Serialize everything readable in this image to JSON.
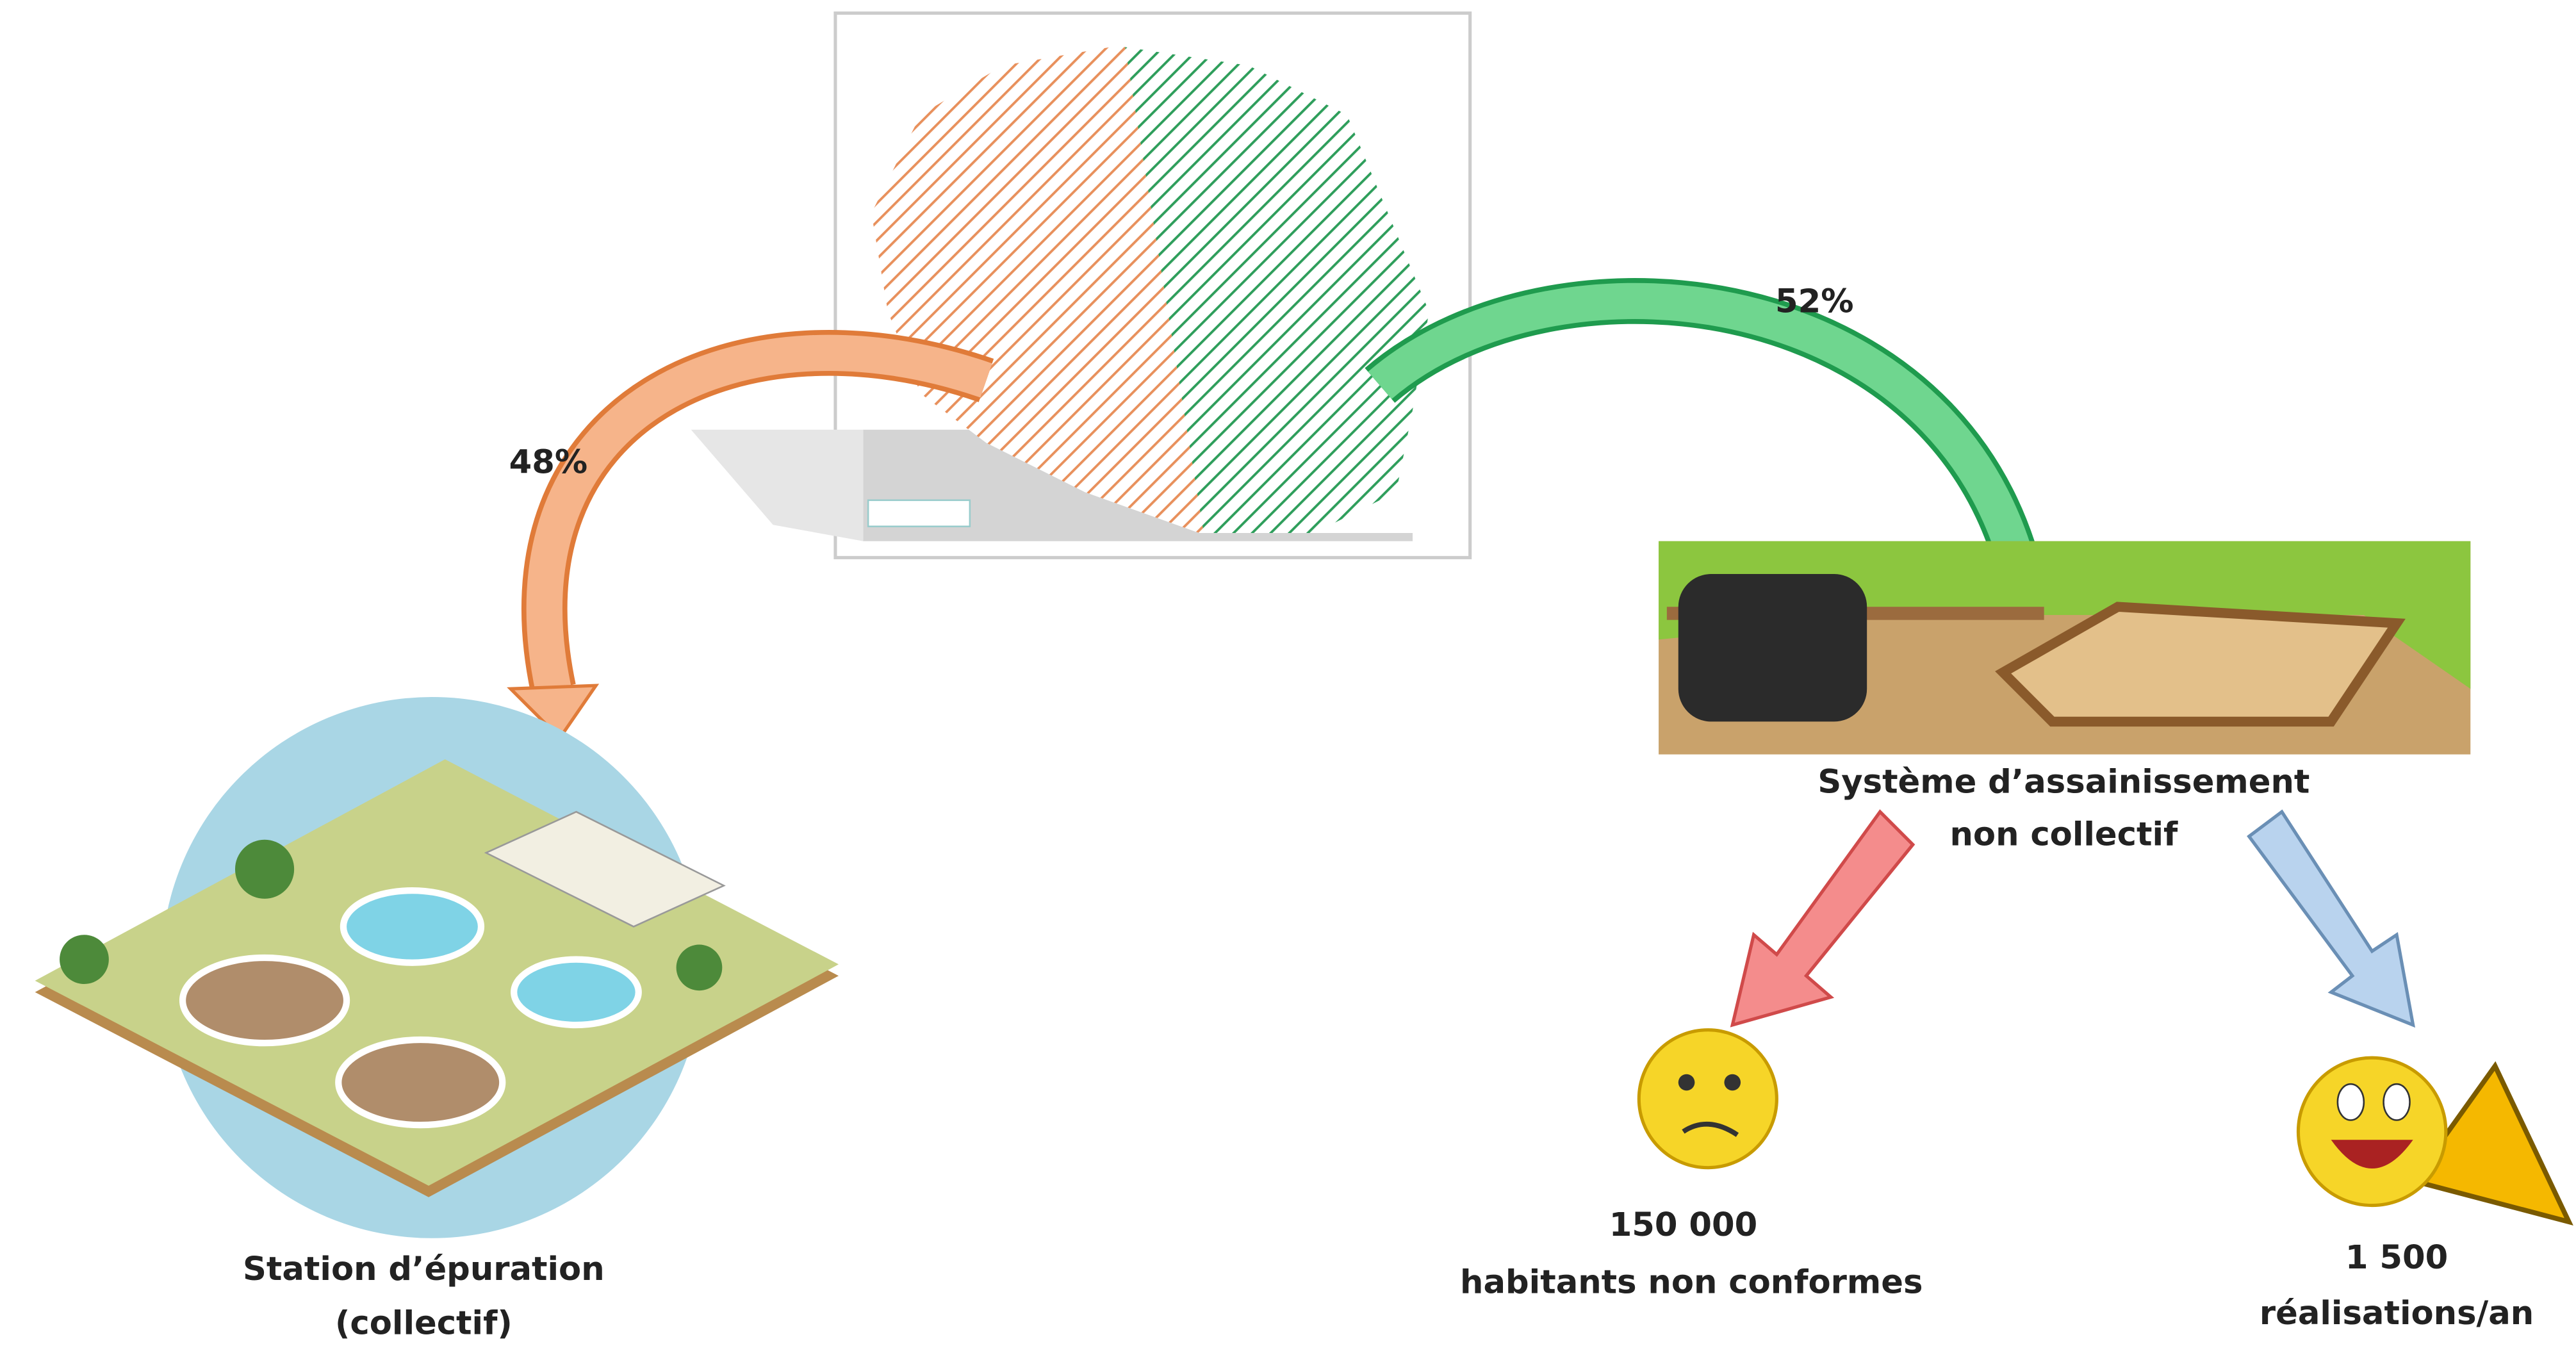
{
  "labels": {
    "left_percent": "48%",
    "right_percent": "52%",
    "collective_station": [
      "Station d’épuration",
      "(collectif)"
    ],
    "non_collective_system": [
      "Système d’assainissement",
      "non collectif"
    ],
    "non_compliant": {
      "count": "150 000",
      "label": "habitants non conformes"
    },
    "works": {
      "count": "1 500",
      "label": "réalisations/an"
    }
  }
}
